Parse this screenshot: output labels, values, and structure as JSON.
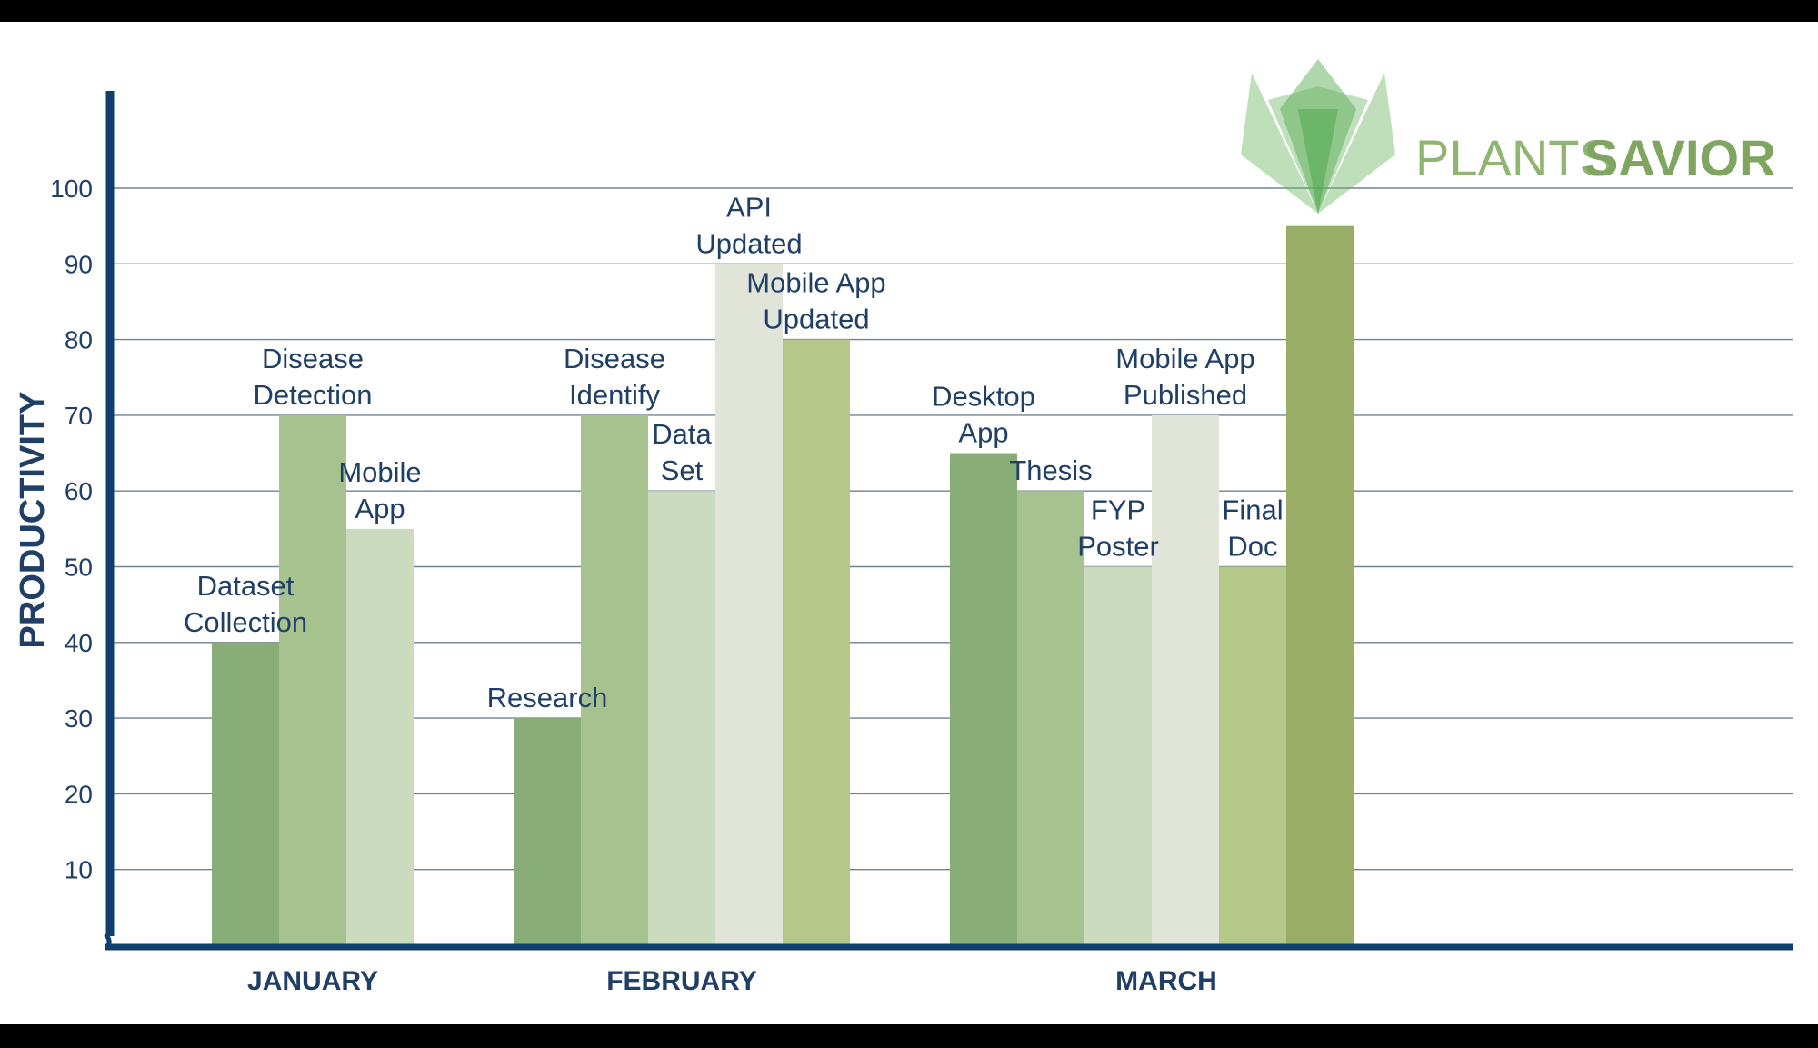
{
  "logo": {
    "text_light": "PLANTS",
    "text_bold": "SAVIOR"
  },
  "colors": {
    "background": "#ffffff",
    "frame": "#000000",
    "axis": "#0f3f6e",
    "grid": "#6e8394",
    "text": "#1f3f66"
  },
  "chart_data": {
    "type": "bar",
    "ylabel": "PRODUCTIVITY",
    "xlabel": "",
    "ylim": [
      0,
      100
    ],
    "yticks": [
      10,
      20,
      30,
      40,
      50,
      60,
      70,
      80,
      90,
      100
    ],
    "grid": true,
    "groups": [
      {
        "label": "JANUARY",
        "bars": [
          {
            "lines": [
              "Dataset",
              "Collection"
            ],
            "value": 40,
            "color": "#88ad76"
          },
          {
            "lines": [
              "Disease",
              "Detection"
            ],
            "value": 70,
            "color": "#a6c38f"
          },
          {
            "lines": [
              "Mobile",
              "App"
            ],
            "value": 55,
            "color": "#ccdabd"
          }
        ]
      },
      {
        "label": "FEBRUARY",
        "bars": [
          {
            "lines": [
              "Research"
            ],
            "value": 30,
            "color": "#88ad76"
          },
          {
            "lines": [
              "Disease",
              "Identify"
            ],
            "value": 70,
            "color": "#a6c38f"
          },
          {
            "lines": [
              "Data",
              "Set"
            ],
            "value": 60,
            "color": "#ccdabd"
          },
          {
            "lines": [
              "API",
              "Updated"
            ],
            "value": 90,
            "color": "#e0e4d9"
          },
          {
            "lines": [
              "Mobile App",
              "Updated"
            ],
            "value": 80,
            "color": "#b5c88a"
          }
        ]
      },
      {
        "label": "MARCH",
        "bars": [
          {
            "lines": [
              "Desktop",
              "App"
            ],
            "value": 65,
            "color": "#88ad76"
          },
          {
            "lines": [
              "Thesis"
            ],
            "value": 60,
            "color": "#a6c38f"
          },
          {
            "lines": [
              "FYP",
              "Poster"
            ],
            "value": 50,
            "color": "#ccdabd"
          },
          {
            "lines": [
              "Mobile App",
              "Published"
            ],
            "value": 70,
            "color": "#e0e4d9"
          },
          {
            "lines": [
              "Final",
              "Doc"
            ],
            "value": 50,
            "color": "#b5c88a"
          },
          {
            "lines": [],
            "value": 95,
            "color": "#9aad67"
          }
        ]
      }
    ]
  }
}
